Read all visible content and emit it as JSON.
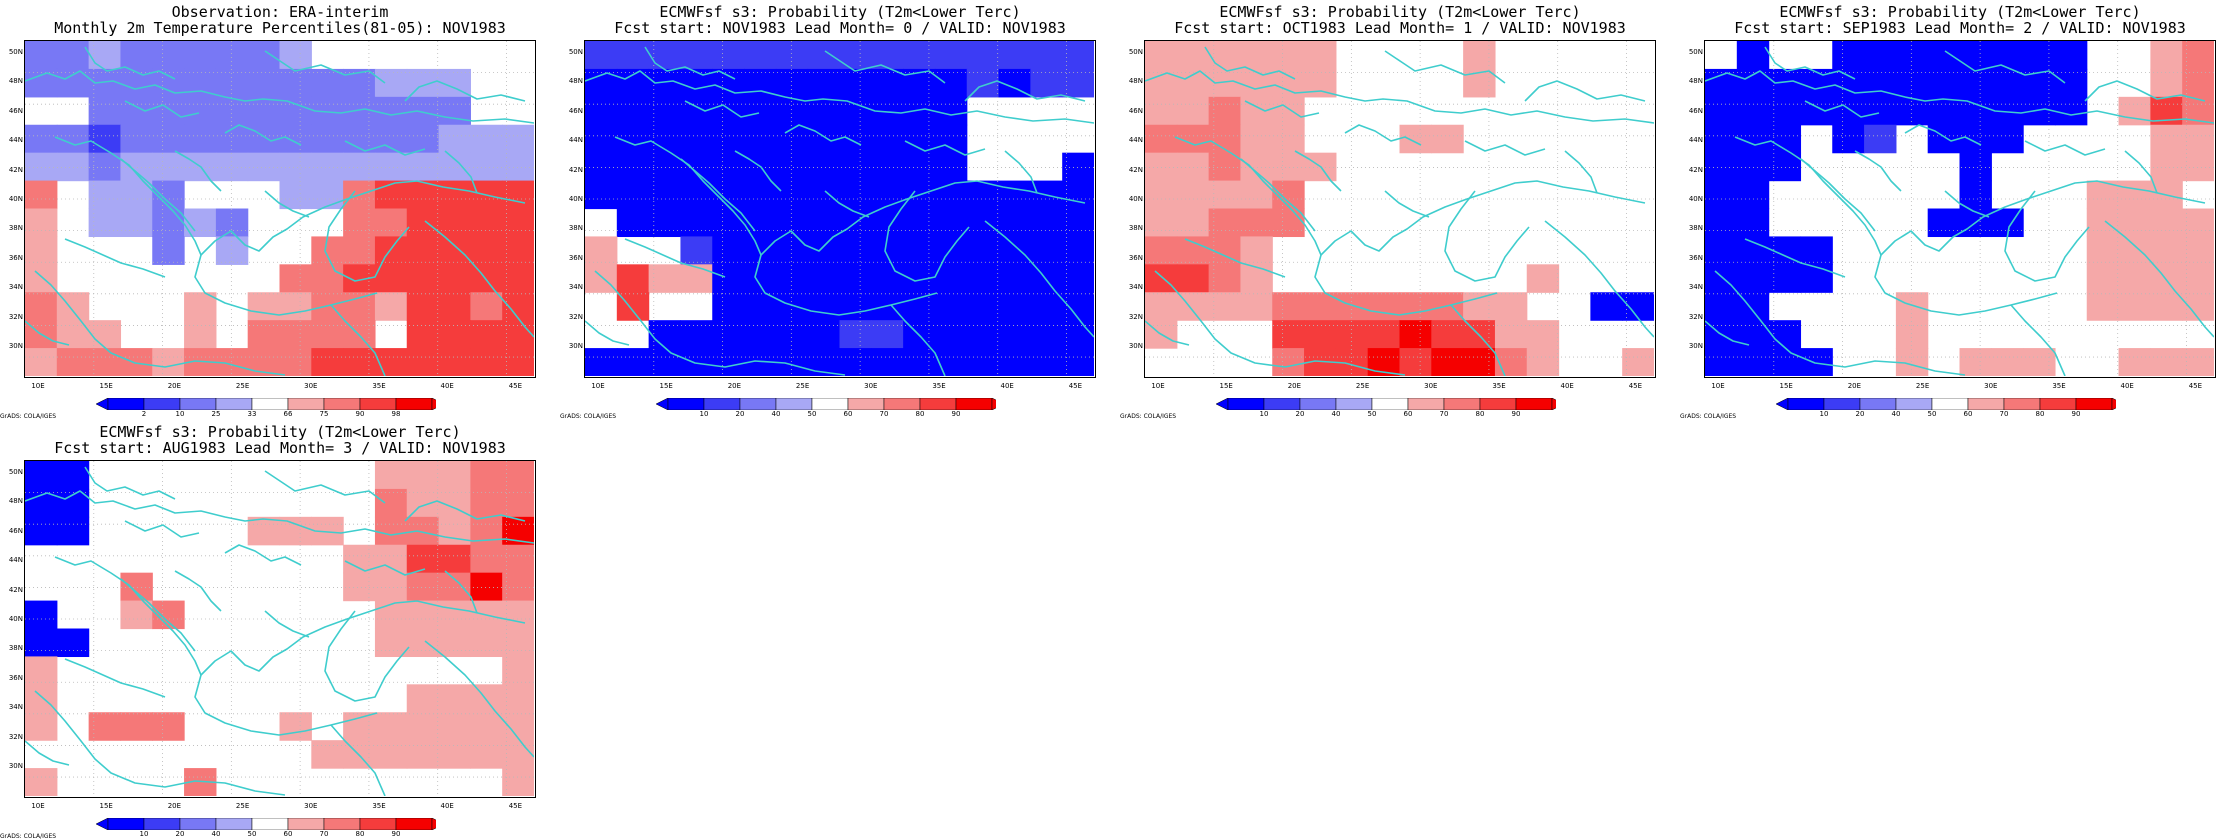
{
  "colors": {
    "cool": [
      "#0000ff",
      "#3c3cf5",
      "#7878f5",
      "#a8a8f5"
    ],
    "warm": [
      "#f5a8a8",
      "#f57878",
      "#f53c3c",
      "#f50000"
    ],
    "coast": "#3fcdcd",
    "grid": "#b8b8b8"
  },
  "lat_labels": [
    "50N",
    "48N",
    "46N",
    "44N",
    "42N",
    "40N",
    "38N",
    "36N",
    "34N",
    "32N",
    "30N"
  ],
  "lon_labels": [
    "10E",
    "15E",
    "20E",
    "25E",
    "30E",
    "35E",
    "40E",
    "45E"
  ],
  "obs_colorbar_labels": [
    "2",
    "10",
    "25",
    "33",
    "66",
    "75",
    "90",
    "98"
  ],
  "prob_colorbar_labels": [
    "10",
    "20",
    "40",
    "50",
    "60",
    "70",
    "80",
    "90"
  ],
  "credit": "GrADS: COLA/IGES",
  "panels": [
    {
      "title1": "Observation: ERA-interim",
      "title2": "Monthly 2m Temperature Percentiles(81-05): NOV1983",
      "legend": "obs",
      "grid": [
        [
          "L3",
          "L3",
          "L4",
          "L3",
          "L3",
          "L3",
          "L3",
          "L3",
          "L4",
          "0",
          "0",
          "0",
          "0",
          "0",
          "0",
          "0"
        ],
        [
          "L3",
          "L3",
          "L3",
          "L3",
          "L3",
          "L3",
          "L3",
          "L3",
          "L3",
          "L3",
          "L3",
          "L4",
          "L4",
          "L4",
          "0",
          "0"
        ],
        [
          "0",
          "0",
          "L3",
          "L3",
          "L3",
          "L3",
          "L3",
          "L3",
          "L3",
          "L3",
          "L3",
          "L3",
          "L3",
          "L3",
          "0",
          "0"
        ],
        [
          "L3",
          "L3",
          "L2",
          "L3",
          "L3",
          "L3",
          "L3",
          "L3",
          "L3",
          "L3",
          "L3",
          "L3",
          "L3",
          "L4",
          "L4",
          "L4"
        ],
        [
          "L4",
          "L4",
          "L3",
          "L4",
          "L4",
          "L4",
          "L4",
          "L4",
          "L4",
          "L4",
          "L4",
          "L4",
          "L4",
          "L4",
          "L4",
          "L4"
        ],
        [
          "W2",
          "0",
          "L4",
          "L4",
          "L3",
          "0",
          "0",
          "0",
          "L4",
          "L4",
          "W2",
          "W3",
          "W3",
          "W3",
          "W3",
          "W3"
        ],
        [
          "W1",
          "0",
          "L4",
          "L4",
          "L3",
          "L4",
          "L3",
          "0",
          "0",
          "0",
          "W2",
          "W2",
          "W3",
          "W3",
          "W3",
          "W3"
        ],
        [
          "W1",
          "0",
          "0",
          "0",
          "L3",
          "0",
          "L4",
          "0",
          "0",
          "W2",
          "W2",
          "W3",
          "W3",
          "W3",
          "W3",
          "W3"
        ],
        [
          "W1",
          "0",
          "0",
          "0",
          "0",
          "0",
          "0",
          "0",
          "W2",
          "W2",
          "W3",
          "W3",
          "W3",
          "W3",
          "W3",
          "W3"
        ],
        [
          "W2",
          "W1",
          "0",
          "0",
          "0",
          "W1",
          "0",
          "W1",
          "W1",
          "W2",
          "W2",
          "W1",
          "W3",
          "W3",
          "W2",
          "W3"
        ],
        [
          "W2",
          "W1",
          "W1",
          "0",
          "0",
          "W1",
          "0",
          "W2",
          "W2",
          "W2",
          "W2",
          "0",
          "W3",
          "W3",
          "W3",
          "W3"
        ],
        [
          "W1",
          "W2",
          "W2",
          "W2",
          "W1",
          "W2",
          "W2",
          "W2",
          "W2",
          "W3",
          "W3",
          "W3",
          "W3",
          "W3",
          "W3",
          "W3"
        ]
      ]
    },
    {
      "title1": "ECMWFsf s3: Probability (T2m<Lower Terc)",
      "title2": "Fcst start: NOV1983  Lead Month= 0 / VALID: NOV1983",
      "legend": "prob",
      "grid": [
        [
          "L2",
          "L2",
          "L2",
          "L2",
          "L2",
          "L2",
          "L2",
          "L2",
          "L2",
          "L2",
          "L2",
          "L2",
          "L2",
          "L2",
          "L2",
          "L2"
        ],
        [
          "L1",
          "L1",
          "L1",
          "L1",
          "L1",
          "L1",
          "L1",
          "L1",
          "L1",
          "L1",
          "L1",
          "L1",
          "L2",
          "L1",
          "L2",
          "L2"
        ],
        [
          "L1",
          "L1",
          "L1",
          "L1",
          "L1",
          "L1",
          "L1",
          "L1",
          "L1",
          "L1",
          "L1",
          "L1",
          "0",
          "0",
          "0",
          "0"
        ],
        [
          "L1",
          "L1",
          "L1",
          "L1",
          "L1",
          "L1",
          "L1",
          "L1",
          "L1",
          "L1",
          "L1",
          "L1",
          "0",
          "0",
          "0",
          "0"
        ],
        [
          "L1",
          "L1",
          "L1",
          "L1",
          "L1",
          "L1",
          "L1",
          "L1",
          "L1",
          "L1",
          "L1",
          "L1",
          "0",
          "0",
          "0",
          "L1"
        ],
        [
          "L1",
          "L1",
          "L1",
          "L1",
          "L1",
          "L1",
          "L1",
          "L1",
          "L1",
          "L1",
          "L1",
          "L1",
          "L1",
          "L1",
          "L1",
          "L1"
        ],
        [
          "0",
          "L1",
          "L1",
          "L1",
          "L1",
          "L1",
          "L1",
          "L1",
          "L1",
          "L1",
          "L1",
          "L1",
          "L1",
          "L1",
          "L1",
          "L1"
        ],
        [
          "W1",
          "0",
          "0",
          "L2",
          "L1",
          "L1",
          "L1",
          "L1",
          "L1",
          "L1",
          "L1",
          "L1",
          "L1",
          "L1",
          "L1",
          "L1"
        ],
        [
          "W1",
          "W3",
          "W1",
          "W1",
          "L1",
          "L1",
          "L1",
          "L1",
          "L1",
          "L1",
          "L1",
          "L1",
          "L1",
          "L1",
          "L1",
          "L1"
        ],
        [
          "0",
          "W3",
          "0",
          "0",
          "L1",
          "L1",
          "L1",
          "L1",
          "L1",
          "L1",
          "L1",
          "L1",
          "L1",
          "L1",
          "L1",
          "L1"
        ],
        [
          "0",
          "0",
          "L1",
          "L1",
          "L1",
          "L1",
          "L1",
          "L1",
          "L2",
          "L2",
          "L1",
          "L1",
          "L1",
          "L1",
          "L1",
          "L1"
        ],
        [
          "L1",
          "L1",
          "L1",
          "L1",
          "L1",
          "L1",
          "L1",
          "L1",
          "L1",
          "L1",
          "L1",
          "L1",
          "L1",
          "L1",
          "L1",
          "L1"
        ]
      ]
    },
    {
      "title1": "ECMWFsf s3: Probability (T2m<Lower Terc)",
      "title2": "Fcst start: OCT1983  Lead Month= 1 / VALID: NOV1983",
      "legend": "prob",
      "grid": [
        [
          "W1",
          "W1",
          "W1",
          "W1",
          "W1",
          "W1",
          "0",
          "0",
          "0",
          "0",
          "W1",
          "0",
          "0",
          "0",
          "0",
          "0"
        ],
        [
          "W1",
          "W1",
          "W1",
          "W1",
          "W1",
          "W1",
          "0",
          "0",
          "0",
          "0",
          "W1",
          "0",
          "0",
          "0",
          "0",
          "0"
        ],
        [
          "W1",
          "W1",
          "W2",
          "W1",
          "W1",
          "0",
          "0",
          "0",
          "0",
          "0",
          "0",
          "0",
          "0",
          "0",
          "0",
          "0"
        ],
        [
          "W2",
          "W2",
          "W2",
          "W1",
          "W1",
          "0",
          "0",
          "0",
          "W1",
          "W1",
          "0",
          "0",
          "0",
          "0",
          "0",
          "0"
        ],
        [
          "W1",
          "W1",
          "W2",
          "W1",
          "W1",
          "W1",
          "0",
          "0",
          "0",
          "0",
          "0",
          "0",
          "0",
          "0",
          "0",
          "0"
        ],
        [
          "W1",
          "W1",
          "W1",
          "W1",
          "W2",
          "0",
          "0",
          "0",
          "0",
          "0",
          "0",
          "0",
          "0",
          "0",
          "0",
          "0"
        ],
        [
          "W1",
          "W1",
          "W2",
          "W2",
          "W2",
          "0",
          "0",
          "0",
          "0",
          "0",
          "0",
          "0",
          "0",
          "0",
          "0",
          "0"
        ],
        [
          "W2",
          "W2",
          "W2",
          "W1",
          "0",
          "0",
          "0",
          "0",
          "0",
          "0",
          "0",
          "0",
          "0",
          "0",
          "0",
          "0"
        ],
        [
          "W3",
          "W3",
          "W2",
          "W1",
          "0",
          "0",
          "0",
          "0",
          "0",
          "0",
          "0",
          "0",
          "W1",
          "0",
          "0",
          "0"
        ],
        [
          "W1",
          "W1",
          "W1",
          "W1",
          "W2",
          "W2",
          "W2",
          "W2",
          "W2",
          "W2",
          "W1",
          "W1",
          "0",
          "0",
          "L1",
          "L1"
        ],
        [
          "W1",
          "0",
          "0",
          "0",
          "W3",
          "W3",
          "W3",
          "W3",
          "W4",
          "W3",
          "W3",
          "W1",
          "W1",
          "0",
          "0",
          "0"
        ],
        [
          "0",
          "0",
          "0",
          "0",
          "W2",
          "W3",
          "W3",
          "W4",
          "W3",
          "W4",
          "W4",
          "W2",
          "W1",
          "0",
          "0",
          "W1"
        ]
      ]
    },
    {
      "title1": "ECMWFsf s3: Probability (T2m<Lower Terc)",
      "title2": "Fcst start: SEP1983  Lead Month= 2 / VALID: NOV1983",
      "legend": "prob",
      "grid": [
        [
          "0",
          "L1",
          "0",
          "0",
          "L1",
          "L1",
          "L1",
          "L1",
          "L1",
          "L1",
          "L1",
          "L1",
          "0",
          "0",
          "W1",
          "W2"
        ],
        [
          "L1",
          "L1",
          "L1",
          "L1",
          "L1",
          "L1",
          "L1",
          "L1",
          "L1",
          "L1",
          "L1",
          "L1",
          "0",
          "0",
          "W1",
          "W2"
        ],
        [
          "L1",
          "L1",
          "L1",
          "L1",
          "L1",
          "L1",
          "L1",
          "L1",
          "L1",
          "L1",
          "L1",
          "L1",
          "0",
          "W1",
          "W3",
          "W2"
        ],
        [
          "L1",
          "L1",
          "L1",
          "0",
          "L1",
          "L2",
          "0",
          "L1",
          "L1",
          "L1",
          "0",
          "0",
          "0",
          "0",
          "W1",
          "W1"
        ],
        [
          "L1",
          "L1",
          "L1",
          "0",
          "0",
          "0",
          "0",
          "0",
          "L1",
          "0",
          "0",
          "0",
          "0",
          "0",
          "W1",
          "W1"
        ],
        [
          "L1",
          "L1",
          "0",
          "0",
          "0",
          "0",
          "0",
          "0",
          "L1",
          "0",
          "0",
          "0",
          "W1",
          "W1",
          "W1",
          "0"
        ],
        [
          "L1",
          "L1",
          "0",
          "0",
          "0",
          "0",
          "0",
          "L1",
          "L1",
          "L1",
          "0",
          "0",
          "W1",
          "W1",
          "W1",
          "W1"
        ],
        [
          "L1",
          "L1",
          "L1",
          "L1",
          "0",
          "0",
          "0",
          "0",
          "0",
          "0",
          "0",
          "0",
          "W1",
          "W1",
          "W1",
          "W1"
        ],
        [
          "L1",
          "L1",
          "L1",
          "L1",
          "0",
          "0",
          "0",
          "0",
          "0",
          "0",
          "0",
          "0",
          "W1",
          "W1",
          "W1",
          "W1"
        ],
        [
          "L1",
          "L1",
          "0",
          "0",
          "0",
          "0",
          "W1",
          "0",
          "0",
          "0",
          "0",
          "0",
          "W1",
          "W1",
          "W1",
          "W1"
        ],
        [
          "L1",
          "L1",
          "L1",
          "0",
          "0",
          "0",
          "W1",
          "0",
          "0",
          "0",
          "0",
          "0",
          "0",
          "0",
          "0",
          "0"
        ],
        [
          "L1",
          "L1",
          "L1",
          "L1",
          "0",
          "0",
          "W1",
          "0",
          "W1",
          "W1",
          "W1",
          "0",
          "0",
          "W1",
          "W1",
          "W1"
        ]
      ]
    },
    {
      "title1": "ECMWFsf s3: Probability (T2m<Lower Terc)",
      "title2": "Fcst start: AUG1983  Lead Month= 3 / VALID: NOV1983",
      "legend": "prob",
      "grid": [
        [
          "L1",
          "L1",
          "0",
          "0",
          "0",
          "0",
          "0",
          "0",
          "0",
          "0",
          "0",
          "W1",
          "W1",
          "W1",
          "W2",
          "W2"
        ],
        [
          "L1",
          "L1",
          "0",
          "0",
          "0",
          "0",
          "0",
          "0",
          "0",
          "0",
          "0",
          "W2",
          "W1",
          "W1",
          "W2",
          "W2"
        ],
        [
          "L1",
          "L1",
          "0",
          "0",
          "0",
          "0",
          "0",
          "W1",
          "W1",
          "W1",
          "0",
          "W2",
          "W2",
          "W1",
          "W2",
          "W4"
        ],
        [
          "0",
          "0",
          "0",
          "0",
          "0",
          "0",
          "0",
          "0",
          "0",
          "0",
          "W1",
          "W1",
          "W3",
          "W3",
          "W2",
          "W2"
        ],
        [
          "0",
          "0",
          "0",
          "W2",
          "0",
          "0",
          "0",
          "0",
          "0",
          "0",
          "W1",
          "W1",
          "W2",
          "W2",
          "W4",
          "W2"
        ],
        [
          "L1",
          "0",
          "0",
          "W1",
          "W2",
          "0",
          "0",
          "0",
          "0",
          "0",
          "0",
          "W1",
          "W1",
          "W1",
          "W1",
          "W1"
        ],
        [
          "L1",
          "L1",
          "0",
          "0",
          "0",
          "0",
          "0",
          "0",
          "0",
          "0",
          "0",
          "W1",
          "W1",
          "W1",
          "W1",
          "W1"
        ],
        [
          "W1",
          "0",
          "0",
          "0",
          "0",
          "0",
          "0",
          "0",
          "0",
          "0",
          "0",
          "0",
          "0",
          "0",
          "0",
          "W1"
        ],
        [
          "W1",
          "0",
          "0",
          "0",
          "0",
          "0",
          "0",
          "0",
          "0",
          "0",
          "0",
          "0",
          "W1",
          "W1",
          "W1",
          "W1"
        ],
        [
          "W1",
          "0",
          "W2",
          "W2",
          "W2",
          "0",
          "0",
          "0",
          "W1",
          "0",
          "W1",
          "W1",
          "W1",
          "W1",
          "W1",
          "W1"
        ],
        [
          "0",
          "0",
          "0",
          "0",
          "0",
          "0",
          "0",
          "0",
          "0",
          "W1",
          "W1",
          "W1",
          "W1",
          "W1",
          "W1",
          "W1"
        ],
        [
          "W1",
          "0",
          "0",
          "0",
          "0",
          "W2",
          "0",
          "0",
          "0",
          "0",
          "0",
          "0",
          "0",
          "0",
          "0",
          "W1"
        ]
      ]
    }
  ]
}
